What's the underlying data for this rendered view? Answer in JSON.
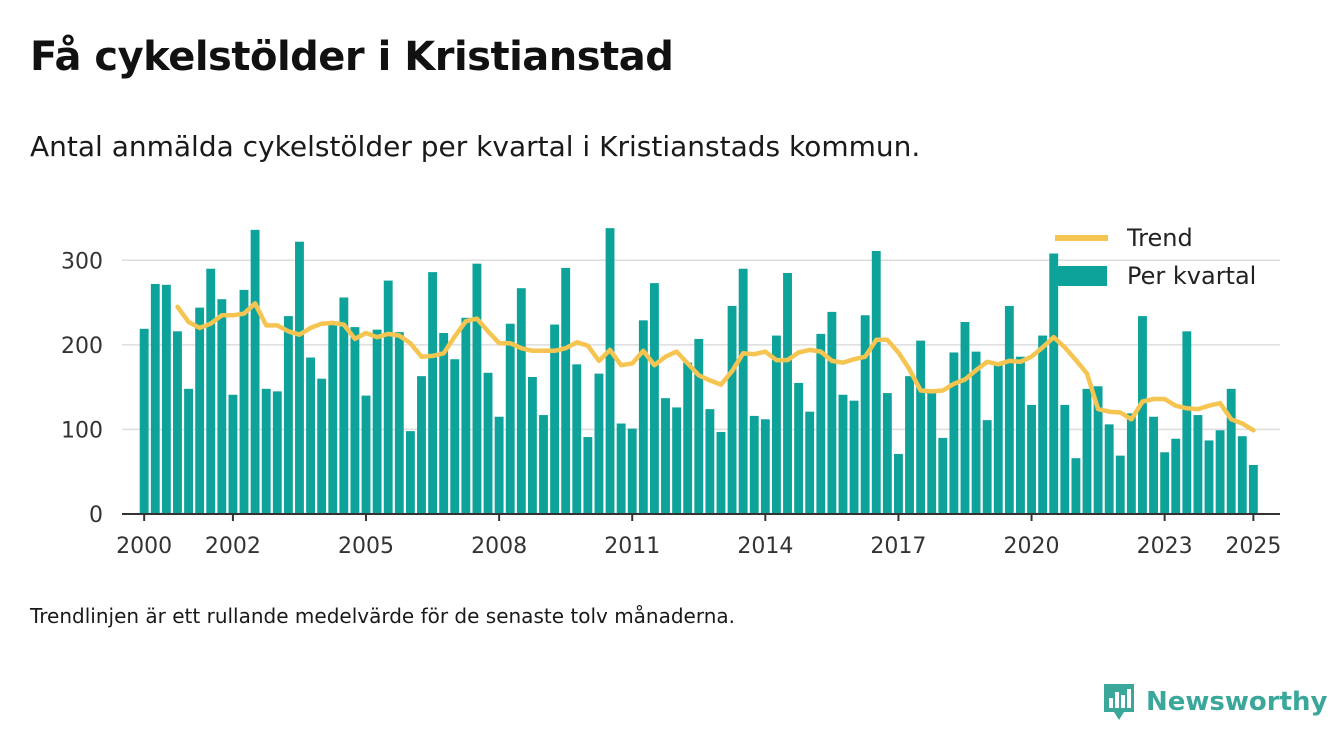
{
  "header": {
    "title": "Få cykelstölder i Kristianstad",
    "subtitle": "Antal anmälda cykelstölder per kvartal i Kristianstads kommun."
  },
  "footnote": "Trendlinjen är ett rullande medelvärde för de senaste tolv månaderna.",
  "brand": {
    "name": "Newsworthy",
    "icon": "newsworthy-logo-icon",
    "color": "#3aa79a"
  },
  "chart_data": {
    "type": "bar",
    "title": "",
    "xlabel": "",
    "ylabel": "",
    "ylim": [
      0,
      350
    ],
    "yticks": [
      0,
      100,
      200,
      300
    ],
    "xlim": [
      1999.5,
      2025.6
    ],
    "xticks": [
      {
        "value": 2000,
        "label": "2000"
      },
      {
        "value": 2002,
        "label": "2002"
      },
      {
        "value": 2005,
        "label": "2005"
      },
      {
        "value": 2008,
        "label": "2008"
      },
      {
        "value": 2011,
        "label": "2011"
      },
      {
        "value": 2014,
        "label": "2014"
      },
      {
        "value": 2017,
        "label": "2017"
      },
      {
        "value": 2020,
        "label": "2020"
      },
      {
        "value": 2023,
        "label": "2023"
      },
      {
        "value": 2025,
        "label": "2025"
      }
    ],
    "grid": true,
    "legend_position": "top-right",
    "start_year": 2000,
    "series": [
      {
        "name": "Per kvartal",
        "type": "bar",
        "color": "#0ea39a",
        "values": [
          219,
          272,
          271,
          216,
          148,
          244,
          290,
          254,
          141,
          265,
          336,
          148,
          145,
          234,
          322,
          185,
          160,
          225,
          256,
          221,
          140,
          218,
          276,
          215,
          98,
          163,
          286,
          214,
          183,
          232,
          296,
          167,
          115,
          225,
          267,
          162,
          117,
          224,
          291,
          177,
          91,
          166,
          338,
          107,
          101,
          229,
          273,
          137,
          126,
          179,
          207,
          124,
          97,
          246,
          290,
          116,
          112,
          211,
          285,
          155,
          121,
          213,
          239,
          141,
          134,
          235,
          311,
          143,
          71,
          163,
          205,
          145,
          90,
          191,
          227,
          192,
          111,
          177,
          246,
          186,
          129,
          211,
          308,
          129,
          66,
          148,
          151,
          106,
          69,
          119,
          234,
          115,
          73,
          89,
          216,
          117,
          87,
          99,
          148,
          92,
          58
        ]
      },
      {
        "name": "Trend",
        "type": "line",
        "color": "#f6c450",
        "values": [
          null,
          null,
          null,
          245,
          227,
          220,
          225,
          235,
          235,
          237,
          249,
          223,
          223,
          216,
          212,
          220,
          225,
          226,
          224,
          207,
          214,
          209,
          213,
          211,
          202,
          186,
          187,
          190,
          210,
          228,
          231,
          216,
          202,
          202,
          196,
          193,
          193,
          193,
          196,
          203,
          199,
          181,
          194,
          176,
          178,
          193,
          176,
          186,
          192,
          178,
          164,
          158,
          153,
          169,
          190,
          189,
          192,
          182,
          182,
          191,
          194,
          192,
          181,
          179,
          183,
          186,
          206,
          206,
          191,
          171,
          146,
          145,
          146,
          154,
          159,
          170,
          180,
          177,
          181,
          180,
          186,
          197,
          209,
          197,
          182,
          166,
          124,
          121,
          120,
          112,
          133,
          136,
          136,
          128,
          125,
          124,
          128,
          131,
          112,
          107,
          99
        ]
      }
    ]
  }
}
